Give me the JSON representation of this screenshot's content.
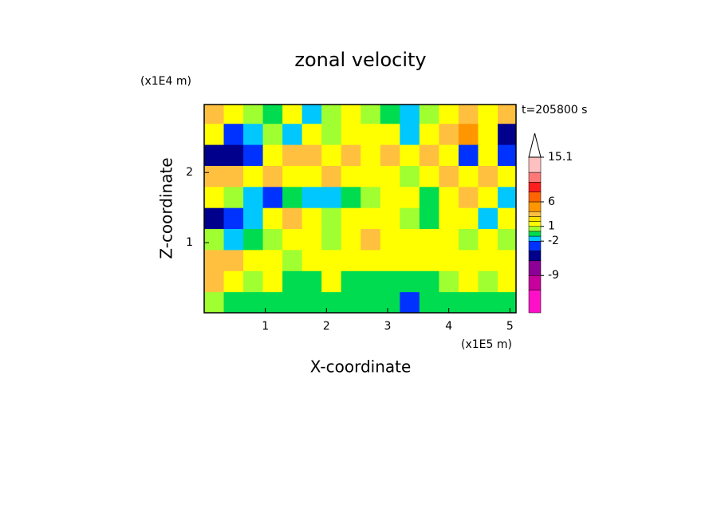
{
  "chart_data": {
    "type": "contour",
    "title": "zonal velocity",
    "x_label": "X-coordinate",
    "y_label": "Z-coordinate",
    "x_unit": "(x1E5 m)",
    "y_unit": "(x1E4 m)",
    "annotation": "t=205800 s",
    "xlim": [
      0,
      5.1
    ],
    "ylim": [
      0,
      2.97
    ],
    "xticks": [
      1,
      2,
      3,
      4,
      5
    ],
    "yticks": [
      1,
      2
    ],
    "x": [
      0.16,
      0.48,
      0.8,
      1.12,
      1.44,
      1.76,
      2.08,
      2.4,
      2.72,
      3.04,
      3.36,
      3.68,
      4.0,
      4.32,
      4.64,
      4.96
    ],
    "y": [
      0.15,
      0.45,
      0.75,
      1.05,
      1.35,
      1.65,
      1.95,
      2.25,
      2.55,
      2.85
    ],
    "z": [
      [
        0.5,
        -0.5,
        -0.5,
        -0.5,
        -0.5,
        -0.5,
        -0.5,
        -0.5,
        -0.5,
        -0.5,
        -3,
        -0.5,
        -0.5,
        -0.5,
        -0.5,
        -0.5
      ],
      [
        3.5,
        1.5,
        0.5,
        1.5,
        -0.5,
        -0.5,
        1.5,
        -0.5,
        -0.5,
        -0.5,
        -0.5,
        -0.5,
        0.5,
        1.5,
        0.5,
        1.5
      ],
      [
        3.5,
        3.5,
        1.5,
        1.5,
        0.5,
        1.5,
        1.5,
        1.5,
        1.5,
        1.5,
        1.5,
        1.5,
        1.5,
        1.5,
        1.5,
        1.5
      ],
      [
        0.5,
        -1.5,
        -0.5,
        0.5,
        1.5,
        1.5,
        0.5,
        1.5,
        3.5,
        1.5,
        1.5,
        1.5,
        1.5,
        0.5,
        1.5,
        0.5
      ],
      [
        -5,
        -3,
        -1.5,
        1.5,
        3.5,
        1.5,
        0.5,
        1.5,
        1.5,
        1.5,
        0.5,
        -0.5,
        1.5,
        1.5,
        -1.5,
        1.5
      ],
      [
        1.5,
        0.5,
        -1.5,
        -3,
        -0.5,
        -1.5,
        -1.5,
        -0.5,
        0.5,
        1.5,
        1.5,
        -0.5,
        1.5,
        3.5,
        1.5,
        -1.5
      ],
      [
        3.5,
        3.5,
        1.5,
        3.5,
        1.5,
        1.5,
        3.5,
        1.5,
        1.5,
        1.5,
        0.5,
        1.5,
        3.5,
        1.5,
        3.5,
        1.5
      ],
      [
        -5,
        -5,
        -3,
        1.5,
        3.5,
        3.5,
        1.5,
        3.5,
        1.5,
        3.5,
        1.5,
        3.5,
        1.5,
        -3,
        1.5,
        -3
      ],
      [
        1.5,
        -3,
        -1.5,
        0.5,
        -1.5,
        1.5,
        0.5,
        1.5,
        1.5,
        1.5,
        -1.5,
        1.5,
        3.5,
        5,
        1.5,
        -5
      ],
      [
        3.5,
        1.5,
        0.5,
        -0.5,
        1.5,
        -1.5,
        0.5,
        1.5,
        0.5,
        -0.5,
        -1.5,
        0.5,
        1.5,
        3.5,
        1.5,
        3.5
      ]
    ],
    "colorbar": {
      "levels": [
        -16.6,
        -12,
        -9,
        -6,
        -4,
        -2,
        -1,
        0,
        1,
        2,
        3,
        4,
        6,
        8,
        10,
        12,
        15.1
      ],
      "colors": [
        "#ff10c8",
        "#c8009c",
        "#8c0096",
        "#00008c",
        "#0032ff",
        "#00c8ff",
        "#00dc50",
        "#a0ff30",
        "#ffff00",
        "#ffe100",
        "#ffc040",
        "#ff9600",
        "#ff6400",
        "#ff1e1e",
        "#ff7878",
        "#ffc0c0"
      ],
      "over_color": "#ffffff",
      "ticks": [
        15.1,
        6,
        1,
        -2,
        -9
      ]
    }
  }
}
